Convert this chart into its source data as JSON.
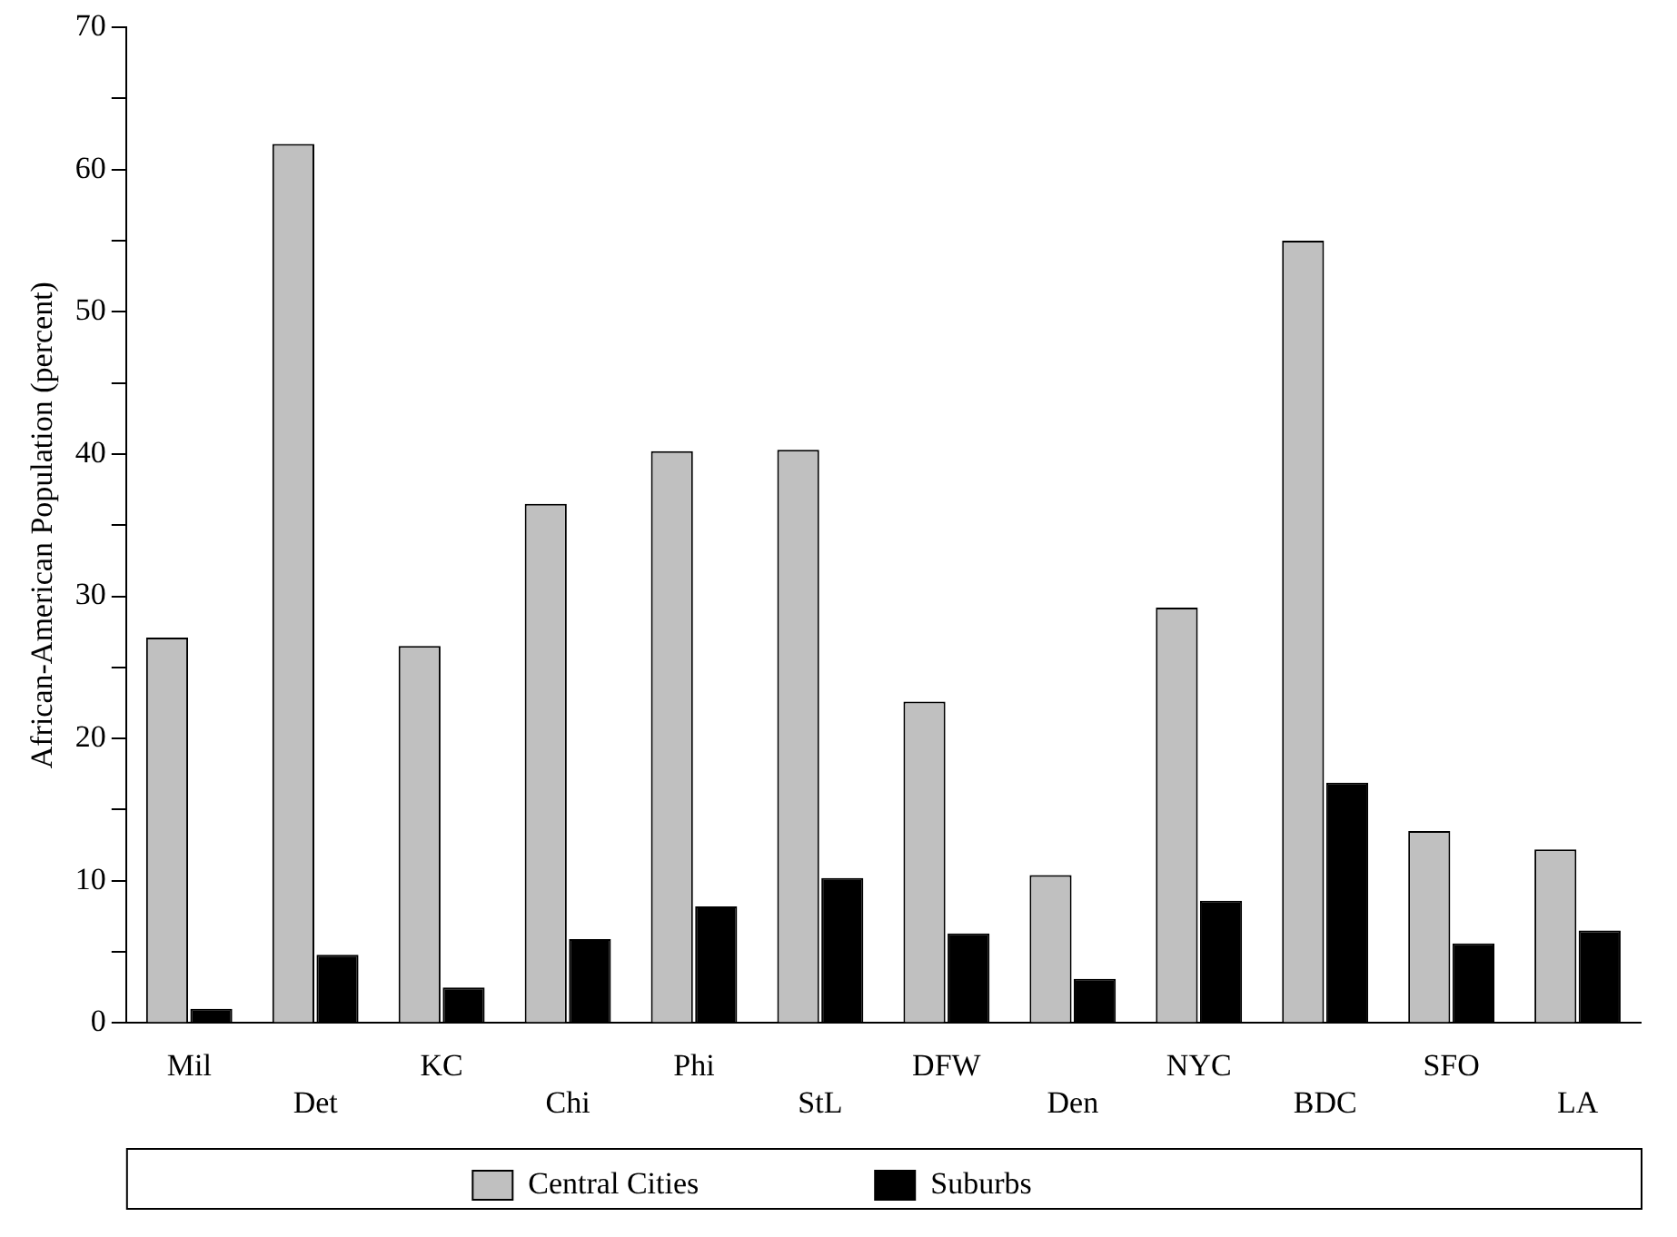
{
  "chart_data": {
    "type": "bar",
    "ylabel": "African-American Population (percent)",
    "categories": [
      "Mil",
      "Det",
      "KC",
      "Chi",
      "Phi",
      "StL",
      "DFW",
      "Den",
      "NYC",
      "BDC",
      "SFO",
      "LA"
    ],
    "series": [
      {
        "name": "Central Cities",
        "color": "#c0c0c0",
        "values": [
          27.1,
          61.8,
          26.5,
          36.5,
          40.2,
          40.3,
          22.6,
          10.4,
          29.2,
          55.0,
          13.5,
          12.2
        ]
      },
      {
        "name": "Suburbs",
        "color": "#000000",
        "values": [
          1.0,
          4.8,
          2.5,
          5.9,
          8.2,
          10.2,
          6.3,
          3.1,
          8.6,
          16.9,
          5.6,
          6.5
        ]
      }
    ],
    "ylim": [
      0,
      70
    ],
    "yticks": [
      0,
      {
        "value": 5,
        "label": null
      },
      10,
      {
        "value": 15,
        "label": null
      },
      20,
      {
        "value": 25,
        "label": null
      },
      30,
      {
        "value": 35,
        "label": null
      },
      40,
      {
        "value": 45,
        "label": null
      },
      50,
      {
        "value": 55,
        "label": null
      },
      60,
      {
        "value": 65,
        "label": null
      },
      70
    ],
    "grid": false,
    "legend": "bottom"
  }
}
